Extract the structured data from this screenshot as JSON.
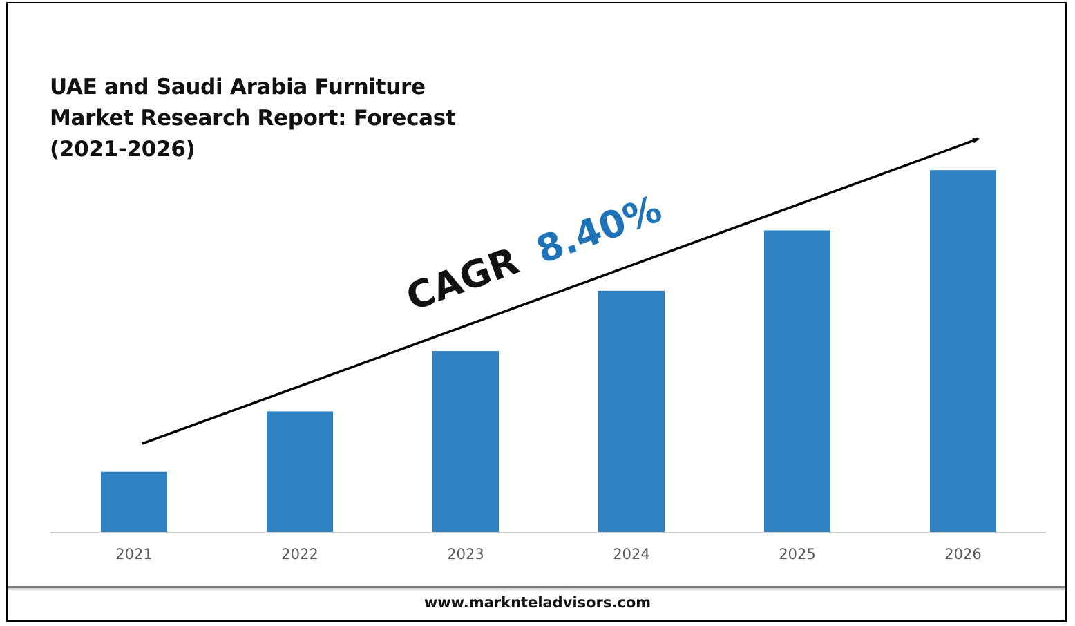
{
  "chart_data": {
    "type": "bar",
    "title_lines": [
      "UAE and Saudi Arabia Furniture",
      "Market Research Report: Forecast",
      "(2021-2026)"
    ],
    "categories": [
      "2021",
      "2022",
      "2023",
      "2024",
      "2025",
      "2026"
    ],
    "values": [
      1.0,
      2.0,
      3.0,
      4.0,
      5.0,
      6.0
    ],
    "ylim": [
      0,
      6.3
    ],
    "grid": false,
    "y_axis_shown": false,
    "bar_color": "#2e82c2",
    "annotation": {
      "prefix": "CAGR",
      "value": "8.40%",
      "prefix_color": "#111111",
      "value_color": "#1f73b9",
      "arrow": "trend arrow rising from 2021 to 2026"
    }
  },
  "footer": {
    "url": "www.marknteladvisors.com"
  }
}
